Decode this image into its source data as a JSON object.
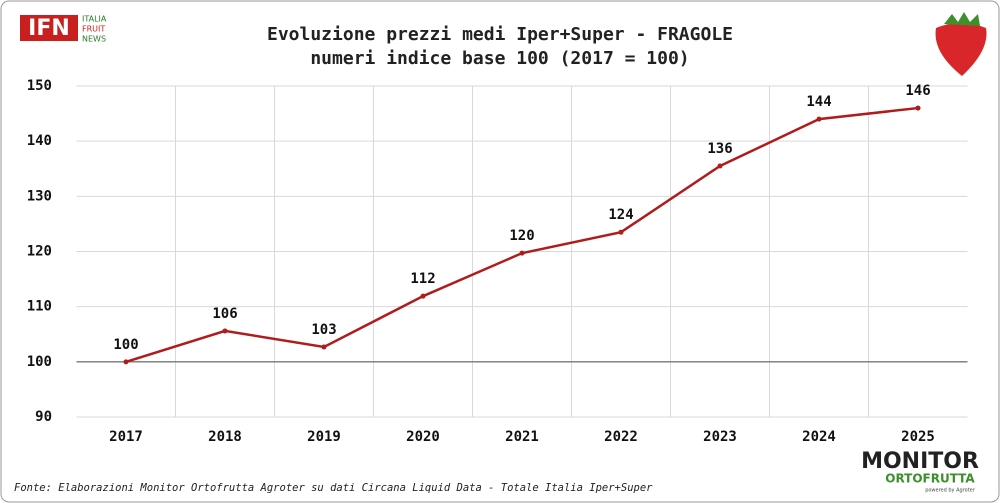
{
  "header": {
    "logo_left": {
      "mark": "IFN",
      "lines": [
        "ITALIA",
        "FRUIT",
        "NEWS"
      ]
    }
  },
  "chart_data": {
    "type": "line",
    "title": "Evoluzione prezzi medi Iper+Super - FRAGOLE",
    "subtitle": "numeri indice base 100 (2017 = 100)",
    "categories": [
      "2017",
      "2018",
      "2019",
      "2020",
      "2021",
      "2022",
      "2023",
      "2024",
      "2025"
    ],
    "values": [
      100,
      105.6,
      102.7,
      111.9,
      119.7,
      123.5,
      135.5,
      144,
      146
    ],
    "value_labels": [
      "100",
      "106",
      "103",
      "112",
      "120",
      "124",
      "136",
      "144",
      "146"
    ],
    "color": "#b01c1c",
    "ylim": [
      90,
      150
    ],
    "yticks": [
      90,
      100,
      110,
      120,
      130,
      140,
      150
    ],
    "reference_line": 100,
    "grid": true
  },
  "footer": {
    "source": "Fonte: Elaborazioni Monitor Ortofrutta Agroter su dati Circana Liquid Data - Totale Italia Iper+Super",
    "logo_right": {
      "line1": "MONITOR",
      "line2": "ORTOFRUTTA",
      "powered": "powered by Agroter"
    }
  }
}
